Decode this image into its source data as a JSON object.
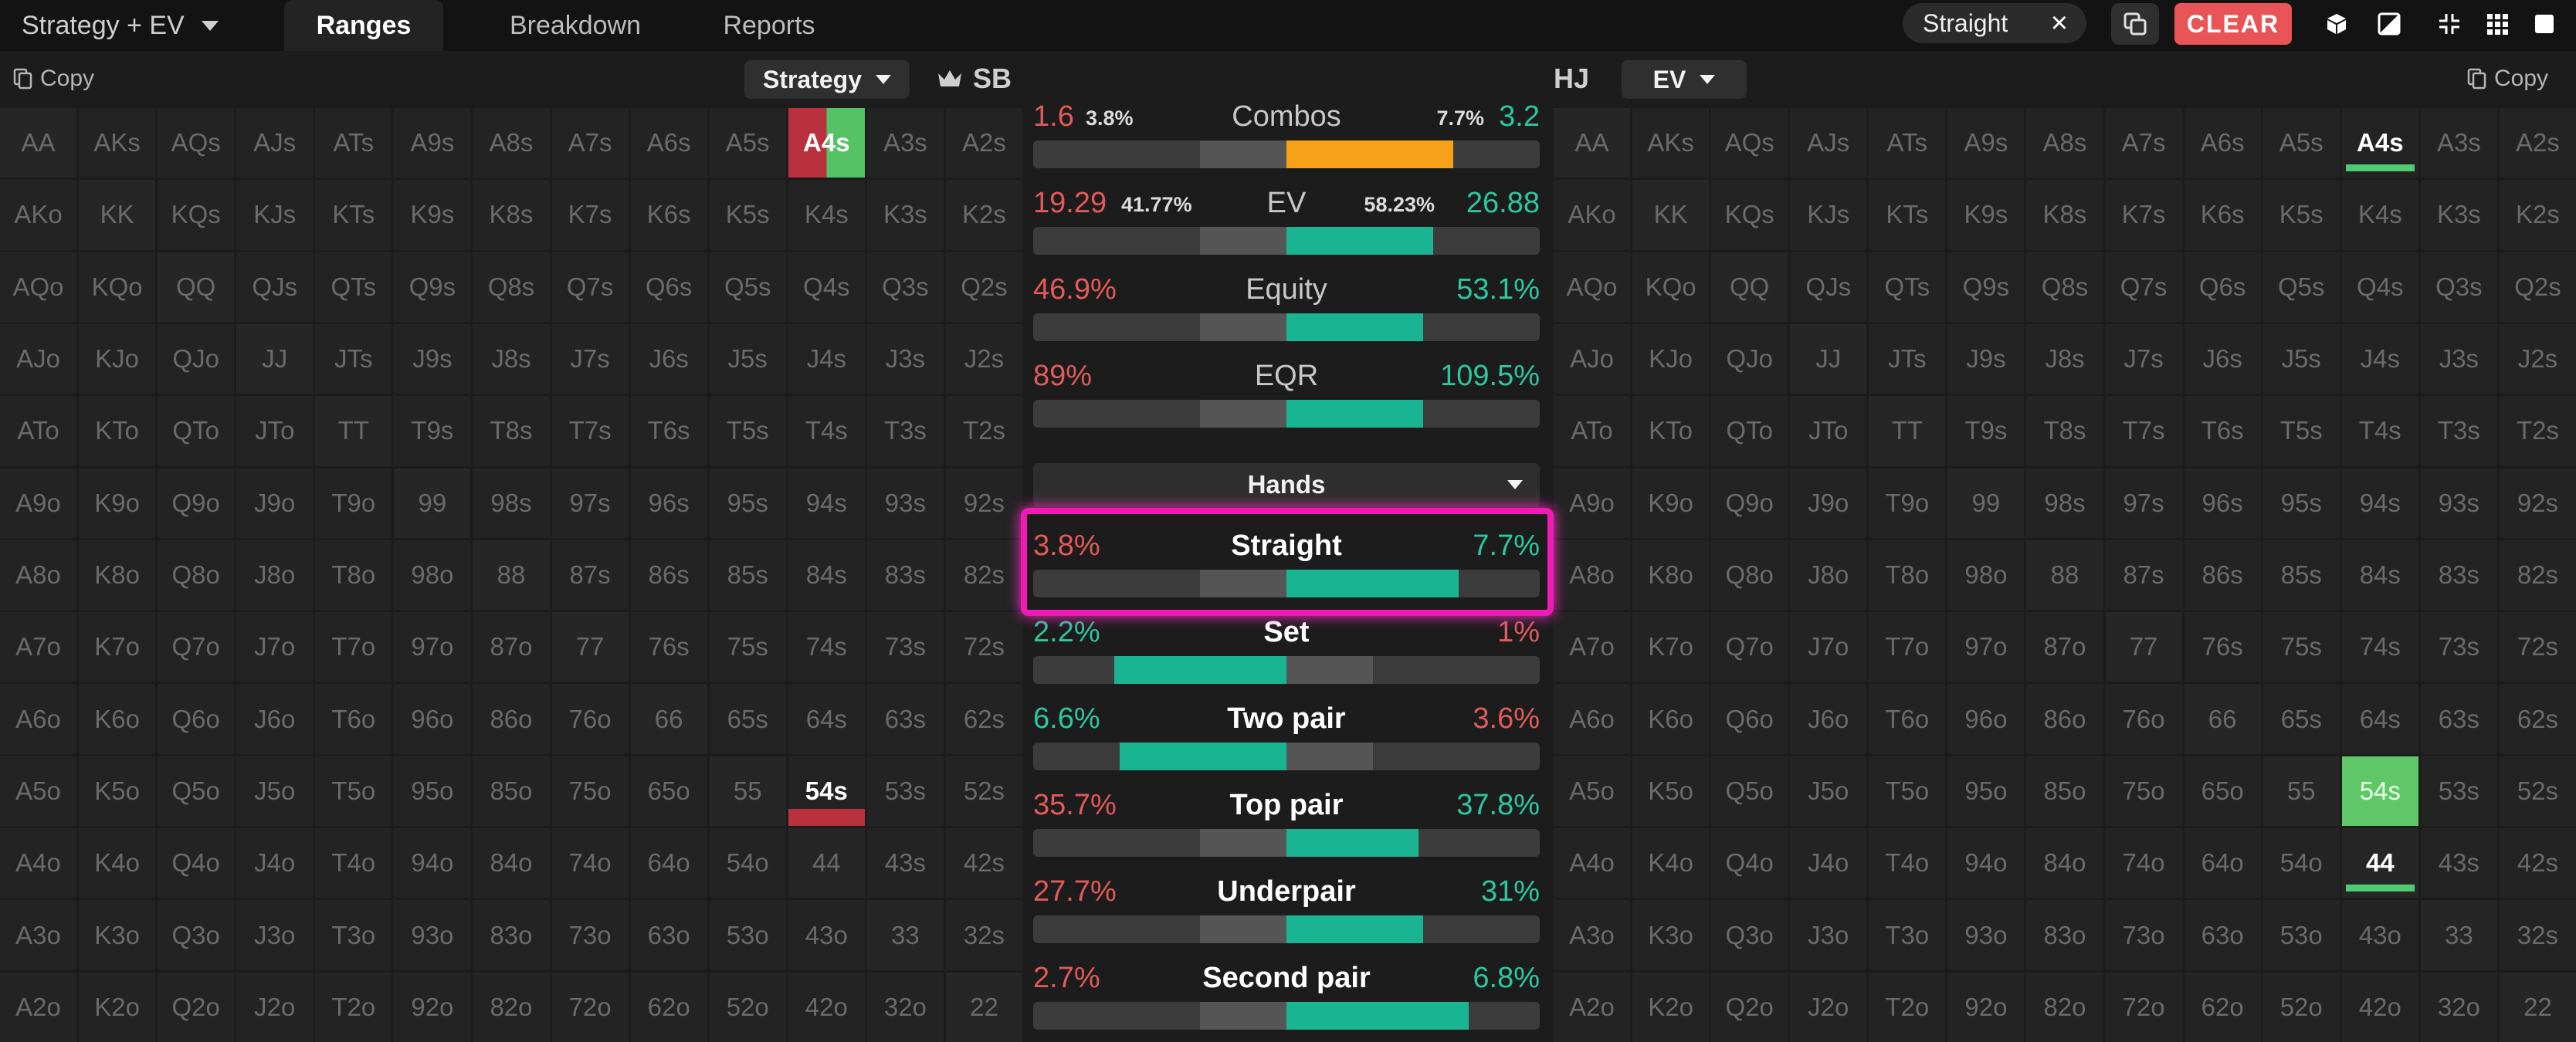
{
  "topbar": {
    "mode_dropdown": "Strategy + EV",
    "tabs": [
      {
        "label": "Ranges",
        "active": true
      },
      {
        "label": "Breakdown",
        "active": false
      },
      {
        "label": "Reports",
        "active": false
      }
    ],
    "filter_chip": "Straight",
    "clear_label": "CLEAR"
  },
  "left": {
    "copy_label": "Copy",
    "view_dropdown": "Strategy",
    "position": "SB",
    "highlights": {
      "A4s": "split",
      "54s": "under-red"
    }
  },
  "right": {
    "copy_label": "Copy",
    "position": "HJ",
    "view_dropdown": "EV",
    "highlights": {
      "A4s": "under-green",
      "54s": "green",
      "44": "under-green"
    }
  },
  "grid_rows": [
    [
      "AA",
      "AKs",
      "AQs",
      "AJs",
      "ATs",
      "A9s",
      "A8s",
      "A7s",
      "A6s",
      "A5s",
      "A4s",
      "A3s",
      "A2s"
    ],
    [
      "AKo",
      "KK",
      "KQs",
      "KJs",
      "KTs",
      "K9s",
      "K8s",
      "K7s",
      "K6s",
      "K5s",
      "K4s",
      "K3s",
      "K2s"
    ],
    [
      "AQo",
      "KQo",
      "QQ",
      "QJs",
      "QTs",
      "Q9s",
      "Q8s",
      "Q7s",
      "Q6s",
      "Q5s",
      "Q4s",
      "Q3s",
      "Q2s"
    ],
    [
      "AJo",
      "KJo",
      "QJo",
      "JJ",
      "JTs",
      "J9s",
      "J8s",
      "J7s",
      "J6s",
      "J5s",
      "J4s",
      "J3s",
      "J2s"
    ],
    [
      "ATo",
      "KTo",
      "QTo",
      "JTo",
      "TT",
      "T9s",
      "T8s",
      "T7s",
      "T6s",
      "T5s",
      "T4s",
      "T3s",
      "T2s"
    ],
    [
      "A9o",
      "K9o",
      "Q9o",
      "J9o",
      "T9o",
      "99",
      "98s",
      "97s",
      "96s",
      "95s",
      "94s",
      "93s",
      "92s"
    ],
    [
      "A8o",
      "K8o",
      "Q8o",
      "J8o",
      "T8o",
      "98o",
      "88",
      "87s",
      "86s",
      "85s",
      "84s",
      "83s",
      "82s"
    ],
    [
      "A7o",
      "K7o",
      "Q7o",
      "J7o",
      "T7o",
      "97o",
      "87o",
      "77",
      "76s",
      "75s",
      "74s",
      "73s",
      "72s"
    ],
    [
      "A6o",
      "K6o",
      "Q6o",
      "J6o",
      "T6o",
      "96o",
      "86o",
      "76o",
      "66",
      "65s",
      "64s",
      "63s",
      "62s"
    ],
    [
      "A5o",
      "K5o",
      "Q5o",
      "J5o",
      "T5o",
      "95o",
      "85o",
      "75o",
      "65o",
      "55",
      "54s",
      "53s",
      "52s"
    ],
    [
      "A4o",
      "K4o",
      "Q4o",
      "J4o",
      "T4o",
      "94o",
      "84o",
      "74o",
      "64o",
      "54o",
      "44",
      "43s",
      "42s"
    ],
    [
      "A3o",
      "K3o",
      "Q3o",
      "J3o",
      "T3o",
      "93o",
      "83o",
      "73o",
      "63o",
      "53o",
      "43o",
      "33",
      "32s"
    ],
    [
      "A2o",
      "K2o",
      "Q2o",
      "J2o",
      "T2o",
      "92o",
      "82o",
      "72o",
      "62o",
      "52o",
      "42o",
      "32o",
      "22"
    ]
  ],
  "center": {
    "combos": {
      "label": "Combos",
      "left": "1.6",
      "left_pct": "3.8%",
      "right_pct": "7.7%",
      "right": "3.2",
      "fill_from": 0.5,
      "fill_to": 0.83
    },
    "ev": {
      "label": "EV",
      "left": "19.29",
      "left_pct": "41.77%",
      "right_pct": "58.23%",
      "right": "26.88",
      "fill_from": 0.5,
      "fill_to": 0.79
    },
    "equity": {
      "label": "Equity",
      "left": "46.9%",
      "right": "53.1%",
      "fill_from": 0.5,
      "fill_to": 0.77
    },
    "eqr": {
      "label": "EQR",
      "left": "89%",
      "right": "109.5%",
      "fill_from": 0.5,
      "fill_to": 0.77
    },
    "hands_dropdown": "Hands",
    "hands": [
      {
        "label": "Straight",
        "left": "3.8%",
        "right": "7.7%",
        "left_color": "red",
        "fill_from": 0.5,
        "fill_to": 0.84
      },
      {
        "label": "Set",
        "left": "2.2%",
        "right": "1%",
        "left_color": "green",
        "fill_from": 0.16,
        "fill_to": 0.5
      },
      {
        "label": "Two pair",
        "left": "6.6%",
        "right": "3.6%",
        "left_color": "green",
        "fill_from": 0.17,
        "fill_to": 0.5
      },
      {
        "label": "Top pair",
        "left": "35.7%",
        "right": "37.8%",
        "left_color": "red",
        "fill_from": 0.5,
        "fill_to": 0.76
      },
      {
        "label": "Underpair",
        "left": "27.7%",
        "right": "31%",
        "left_color": "red",
        "fill_from": 0.5,
        "fill_to": 0.77
      },
      {
        "label": "Second pair",
        "left": "2.7%",
        "right": "6.8%",
        "left_color": "red",
        "fill_from": 0.5,
        "fill_to": 0.86
      }
    ]
  },
  "colors": {
    "accent_red": "#e25a5a",
    "accent_teal": "#19b592",
    "combos_orange": "#f6a117",
    "highlight_magenta": "#f01bb6",
    "clear_button": "#e95556"
  }
}
